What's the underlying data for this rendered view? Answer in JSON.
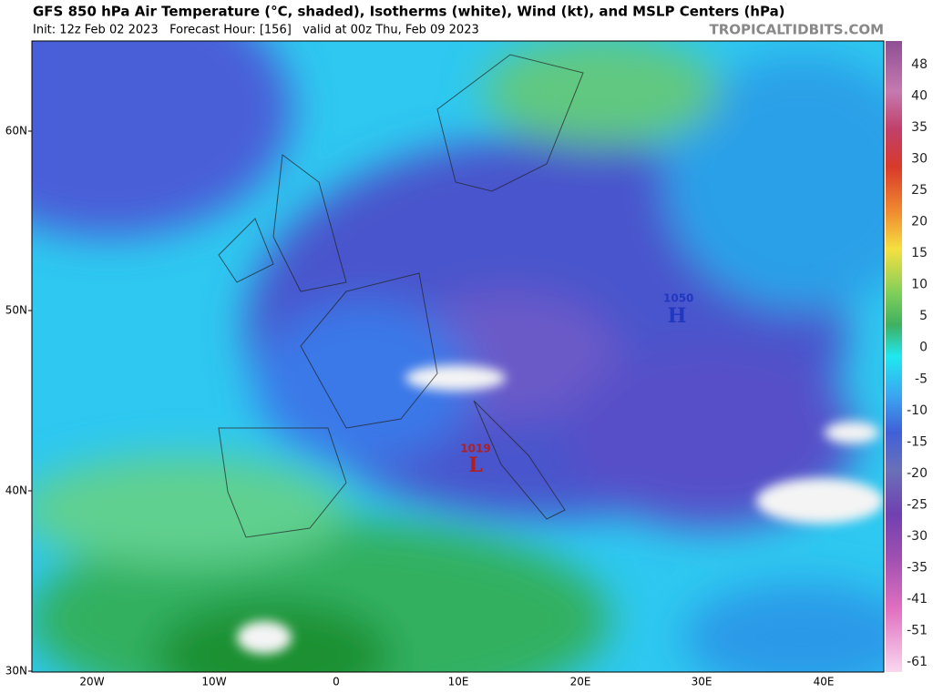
{
  "header": {
    "title": "GFS 850 hPa Air Temperature (°C, shaded), Isotherms (white), Wind (kt), and MSLP Centers (hPa)",
    "subtitle": "Init: 12z Feb 02 2023   Forecast Hour: [156]   valid at 00z Thu, Feb 09 2023",
    "source": "TROPICALTIDBITS.COM"
  },
  "map": {
    "lat_labels": [
      "60N",
      "50N",
      "40N",
      "30N"
    ],
    "lon_labels": [
      "20W",
      "10W",
      "0",
      "10E",
      "20E",
      "30E",
      "40E"
    ],
    "centers": [
      {
        "value": "1050",
        "symbol": "H"
      },
      {
        "value": "1019",
        "symbol": "L"
      }
    ]
  },
  "colorbar": {
    "labels": [
      "48",
      "40",
      "35",
      "30",
      "25",
      "20",
      "15",
      "10",
      "5",
      "0",
      "-5",
      "-10",
      "-15",
      "-20",
      "-25",
      "-30",
      "-35",
      "-41",
      "-51",
      "-61"
    ]
  }
}
